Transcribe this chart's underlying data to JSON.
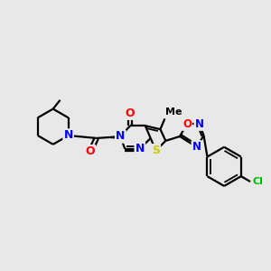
{
  "background_color": "#e8e8e8",
  "bond_color": "#000000",
  "atom_colors": {
    "N": "#0000ff",
    "O": "#ff0000",
    "S": "#cccc00",
    "Cl": "#00bb00",
    "C": "#000000"
  },
  "lw": 1.6,
  "lw_inner": 1.3,
  "fs": 8.5,
  "figsize": [
    3.0,
    3.0
  ],
  "dpi": 100
}
